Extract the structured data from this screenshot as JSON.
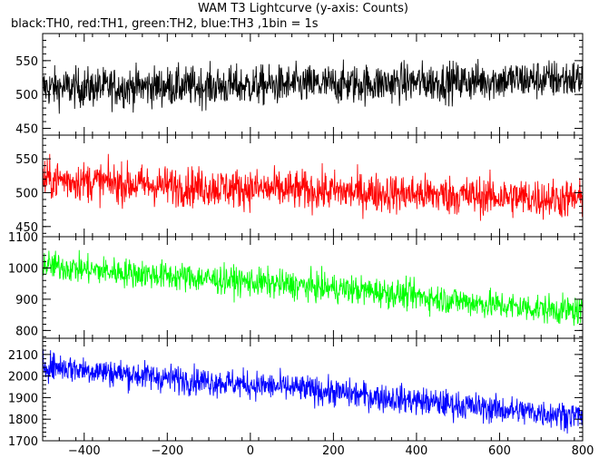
{
  "chart_data": {
    "type": "line",
    "title": "WAM T3 Lightcurve (y-axis: Counts)",
    "subtitle": "black:TH0, red:TH1, green:TH2, blue:TH3 ,1bin = 1s",
    "xlabel": "",
    "ylabel": "",
    "grid": false,
    "legend": "none",
    "x_range": [
      -500,
      800
    ],
    "x_ticks": [
      -400,
      -200,
      0,
      200,
      400,
      600,
      800
    ],
    "x_tick_labels": [
      "−400",
      "−200",
      "0",
      "200",
      "400",
      "600",
      "800"
    ],
    "panels": [
      {
        "series_name": "TH0",
        "color": "#000000",
        "ylim": [
          440,
          590
        ],
        "y_ticks": [
          450,
          500,
          550
        ],
        "x": [
          -500,
          -400,
          -300,
          -200,
          -100,
          0,
          100,
          200,
          300,
          400,
          500,
          600,
          700,
          800
        ],
        "mean": [
          510,
          510,
          511,
          512,
          512,
          513,
          514,
          515,
          516,
          518,
          519,
          521,
          522,
          523
        ],
        "spread": 38
      },
      {
        "series_name": "TH1",
        "color": "#ff0000",
        "ylim": [
          435,
          585
        ],
        "y_ticks": [
          450,
          500,
          550
        ],
        "x": [
          -500,
          -400,
          -300,
          -200,
          -100,
          0,
          100,
          200,
          300,
          400,
          500,
          600,
          700,
          800
        ],
        "mean": [
          520,
          517,
          513,
          510,
          508,
          506,
          504,
          502,
          500,
          498,
          496,
          494,
          492,
          490
        ],
        "spread": 38
      },
      {
        "series_name": "TH2",
        "color": "#00ff00",
        "ylim": [
          775,
          1100
        ],
        "y_ticks": [
          800,
          900,
          1000,
          1100
        ],
        "x": [
          -500,
          -400,
          -300,
          -200,
          -100,
          0,
          100,
          200,
          300,
          400,
          500,
          600,
          700,
          800
        ],
        "mean": [
          1010,
          995,
          985,
          975,
          965,
          955,
          945,
          935,
          925,
          910,
          895,
          880,
          870,
          860
        ],
        "spread": 60
      },
      {
        "series_name": "TH3",
        "color": "#0000ff",
        "ylim": [
          1700,
          2175
        ],
        "y_ticks": [
          1700,
          1800,
          1900,
          2000,
          2100
        ],
        "x": [
          -500,
          -400,
          -300,
          -200,
          -100,
          0,
          100,
          200,
          300,
          400,
          500,
          600,
          700,
          800
        ],
        "mean": [
          2050,
          2030,
          2010,
          1990,
          1975,
          1960,
          1945,
          1925,
          1905,
          1885,
          1865,
          1845,
          1830,
          1815
        ],
        "spread": 85
      }
    ]
  }
}
